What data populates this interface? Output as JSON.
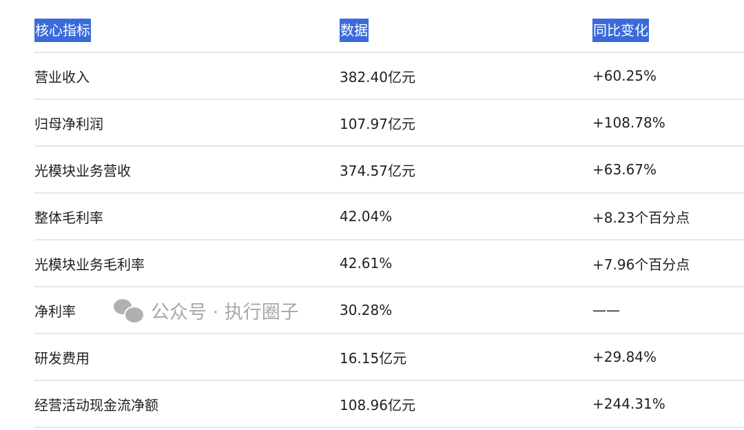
{
  "table": {
    "headers": [
      "核心指标",
      "数据",
      "同比变化"
    ],
    "header_highlight_color": "#3a6bd9",
    "rows": [
      [
        "营业收入",
        "382.40亿元",
        "+60.25%"
      ],
      [
        "归母净利润",
        "107.97亿元",
        "+108.78%"
      ],
      [
        "光模块业务营收",
        "374.57亿元",
        "+63.67%"
      ],
      [
        "整体毛利率",
        "42.04%",
        "+8.23个百分点"
      ],
      [
        "光模块业务毛利率",
        "42.61%",
        "+7.96个百分点"
      ],
      [
        "净利率",
        "30.28%",
        "——"
      ],
      [
        "研发费用",
        "16.15亿元",
        "+29.84%"
      ],
      [
        "经营活动现金流净额",
        "108.96亿元",
        "+244.31%"
      ]
    ]
  },
  "watermark": {
    "icon": "wechat-icon",
    "text": "公众号 · 执行圈子"
  }
}
